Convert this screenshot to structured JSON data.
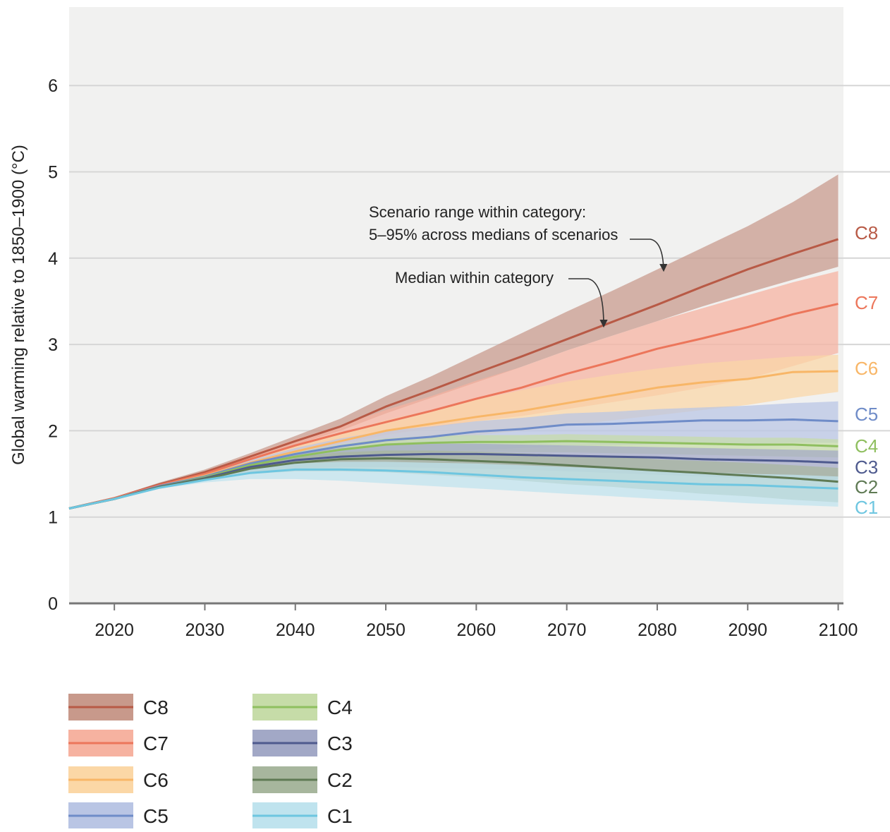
{
  "chart_data": {
    "type": "area",
    "title": "",
    "xlabel": "",
    "ylabel": "Global warming relative to 1850–1900 (°C)",
    "xlim": [
      2015,
      2100
    ],
    "ylim": [
      0,
      7
    ],
    "x_ticks": [
      "2020",
      "2030",
      "2040",
      "2050",
      "2060",
      "2070",
      "2080",
      "2090",
      "2100"
    ],
    "y_ticks": [
      "0",
      "1",
      "2",
      "3",
      "4",
      "5",
      "6"
    ],
    "grid": "horizontal",
    "legend_position": "bottom-left",
    "x": [
      2015,
      2020,
      2025,
      2030,
      2035,
      2040,
      2045,
      2050,
      2055,
      2060,
      2065,
      2070,
      2075,
      2080,
      2085,
      2090,
      2095,
      2100
    ],
    "series": [
      {
        "name": "C8",
        "line_color": "#b85a46",
        "band_color": "#c8998b",
        "median": [
          1.1,
          1.22,
          1.38,
          1.52,
          1.7,
          1.88,
          2.05,
          2.28,
          2.47,
          2.67,
          2.86,
          3.06,
          3.26,
          3.46,
          3.67,
          3.87,
          4.05,
          4.22
        ],
        "low": [
          1.1,
          1.21,
          1.37,
          1.5,
          1.67,
          1.84,
          2.0,
          2.2,
          2.38,
          2.56,
          2.74,
          2.93,
          3.1,
          3.27,
          3.44,
          3.6,
          3.75,
          3.9
        ],
        "high": [
          1.1,
          1.23,
          1.4,
          1.55,
          1.74,
          1.94,
          2.14,
          2.4,
          2.63,
          2.88,
          3.13,
          3.38,
          3.62,
          3.87,
          4.12,
          4.37,
          4.65,
          4.97
        ]
      },
      {
        "name": "C7",
        "line_color": "#ec765b",
        "band_color": "#f6b2a0",
        "median": [
          1.1,
          1.22,
          1.37,
          1.5,
          1.67,
          1.83,
          1.97,
          2.1,
          2.23,
          2.37,
          2.5,
          2.66,
          2.8,
          2.95,
          3.07,
          3.2,
          3.35,
          3.47
        ],
        "low": [
          1.1,
          1.21,
          1.36,
          1.48,
          1.62,
          1.75,
          1.85,
          1.95,
          2.03,
          2.11,
          2.17,
          2.25,
          2.33,
          2.41,
          2.5,
          2.6,
          2.75,
          2.9
        ],
        "high": [
          1.1,
          1.23,
          1.39,
          1.53,
          1.72,
          1.9,
          2.06,
          2.24,
          2.4,
          2.58,
          2.74,
          2.93,
          3.1,
          3.27,
          3.42,
          3.57,
          3.72,
          3.85
        ]
      },
      {
        "name": "C6",
        "line_color": "#f8b667",
        "band_color": "#fbd7a6",
        "median": [
          1.1,
          1.21,
          1.36,
          1.48,
          1.63,
          1.76,
          1.88,
          2.0,
          2.08,
          2.16,
          2.23,
          2.32,
          2.41,
          2.5,
          2.56,
          2.6,
          2.68,
          2.69
        ],
        "low": [
          1.1,
          1.21,
          1.35,
          1.46,
          1.58,
          1.68,
          1.76,
          1.84,
          1.9,
          1.95,
          2.0,
          2.06,
          2.12,
          2.18,
          2.24,
          2.3,
          2.38,
          2.45
        ],
        "high": [
          1.1,
          1.22,
          1.37,
          1.5,
          1.67,
          1.83,
          1.97,
          2.12,
          2.24,
          2.36,
          2.47,
          2.57,
          2.65,
          2.72,
          2.78,
          2.82,
          2.86,
          2.88
        ]
      },
      {
        "name": "C5",
        "line_color": "#6f8cc8",
        "band_color": "#b9c5e4",
        "median": [
          1.1,
          1.21,
          1.36,
          1.47,
          1.62,
          1.73,
          1.82,
          1.89,
          1.93,
          1.99,
          2.02,
          2.07,
          2.08,
          2.1,
          2.12,
          2.12,
          2.13,
          2.11
        ],
        "low": [
          1.1,
          1.21,
          1.35,
          1.45,
          1.56,
          1.64,
          1.7,
          1.74,
          1.76,
          1.78,
          1.8,
          1.82,
          1.83,
          1.84,
          1.85,
          1.85,
          1.86,
          1.86
        ],
        "high": [
          1.1,
          1.22,
          1.37,
          1.49,
          1.66,
          1.8,
          1.91,
          2.0,
          2.05,
          2.11,
          2.15,
          2.2,
          2.22,
          2.25,
          2.27,
          2.29,
          2.32,
          2.34
        ]
      },
      {
        "name": "C4",
        "line_color": "#8fbf5f",
        "band_color": "#c6dca8",
        "median": [
          1.1,
          1.21,
          1.35,
          1.46,
          1.6,
          1.7,
          1.78,
          1.84,
          1.86,
          1.87,
          1.87,
          1.88,
          1.87,
          1.86,
          1.85,
          1.84,
          1.84,
          1.82
        ],
        "low": [
          1.1,
          1.21,
          1.34,
          1.44,
          1.56,
          1.64,
          1.7,
          1.74,
          1.75,
          1.76,
          1.75,
          1.75,
          1.74,
          1.73,
          1.72,
          1.71,
          1.7,
          1.69
        ],
        "high": [
          1.1,
          1.22,
          1.36,
          1.48,
          1.63,
          1.75,
          1.84,
          1.91,
          1.94,
          1.95,
          1.95,
          1.96,
          1.95,
          1.94,
          1.93,
          1.92,
          1.92,
          1.9
        ]
      },
      {
        "name": "C3",
        "line_color": "#4e5a8e",
        "band_color": "#a2a8c6",
        "median": [
          1.1,
          1.21,
          1.35,
          1.45,
          1.58,
          1.66,
          1.7,
          1.72,
          1.73,
          1.73,
          1.72,
          1.71,
          1.7,
          1.69,
          1.67,
          1.66,
          1.65,
          1.63
        ],
        "low": [
          1.1,
          1.21,
          1.34,
          1.43,
          1.52,
          1.56,
          1.58,
          1.58,
          1.57,
          1.56,
          1.55,
          1.53,
          1.51,
          1.49,
          1.47,
          1.45,
          1.43,
          1.41
        ],
        "high": [
          1.1,
          1.22,
          1.36,
          1.47,
          1.62,
          1.74,
          1.8,
          1.84,
          1.85,
          1.85,
          1.84,
          1.83,
          1.82,
          1.81,
          1.8,
          1.79,
          1.78,
          1.77
        ]
      },
      {
        "name": "C2",
        "line_color": "#5f7a54",
        "band_color": "#a7b69d",
        "median": [
          1.1,
          1.21,
          1.35,
          1.44,
          1.56,
          1.63,
          1.67,
          1.68,
          1.67,
          1.65,
          1.63,
          1.6,
          1.57,
          1.54,
          1.51,
          1.48,
          1.45,
          1.41
        ],
        "low": [
          1.1,
          1.21,
          1.34,
          1.42,
          1.5,
          1.53,
          1.53,
          1.52,
          1.49,
          1.46,
          1.42,
          1.38,
          1.35,
          1.31,
          1.27,
          1.24,
          1.2,
          1.17
        ],
        "high": [
          1.1,
          1.22,
          1.36,
          1.46,
          1.61,
          1.7,
          1.75,
          1.77,
          1.77,
          1.76,
          1.74,
          1.72,
          1.7,
          1.67,
          1.65,
          1.63,
          1.6,
          1.57
        ]
      },
      {
        "name": "C1",
        "line_color": "#6ec6e0",
        "band_color": "#bfe3ee",
        "median": [
          1.1,
          1.21,
          1.34,
          1.43,
          1.51,
          1.55,
          1.55,
          1.54,
          1.52,
          1.49,
          1.46,
          1.44,
          1.42,
          1.4,
          1.38,
          1.37,
          1.35,
          1.33
        ],
        "low": [
          1.1,
          1.2,
          1.33,
          1.4,
          1.44,
          1.44,
          1.42,
          1.39,
          1.36,
          1.33,
          1.3,
          1.27,
          1.24,
          1.21,
          1.19,
          1.16,
          1.14,
          1.12
        ],
        "high": [
          1.1,
          1.21,
          1.35,
          1.45,
          1.56,
          1.62,
          1.64,
          1.64,
          1.63,
          1.62,
          1.6,
          1.58,
          1.56,
          1.54,
          1.52,
          1.5,
          1.49,
          1.47
        ]
      }
    ],
    "annotations": [
      {
        "id": "range",
        "lines": [
          "Scenario range within category:",
          "5–95% across medians of scenarios"
        ],
        "points_to": {
          "x": 2080,
          "y": 3.8
        }
      },
      {
        "id": "median",
        "lines": [
          "Median within category"
        ],
        "points_to": {
          "x": 2073,
          "y": 3.2
        }
      }
    ]
  }
}
